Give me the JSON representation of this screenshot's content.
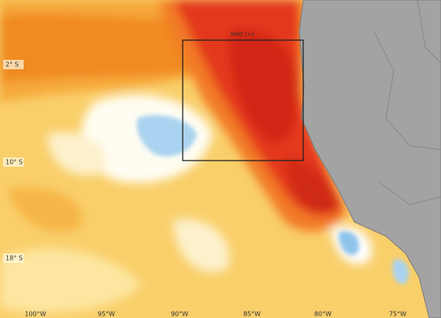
{
  "map": {
    "region_label": "NIÑO 1+2",
    "lat_labels": [
      "2° S",
      "10° S",
      "18° S"
    ],
    "lon_labels": [
      "100°W",
      "95°W",
      "90°W",
      "85°W",
      "80°W",
      "75°W"
    ]
  }
}
